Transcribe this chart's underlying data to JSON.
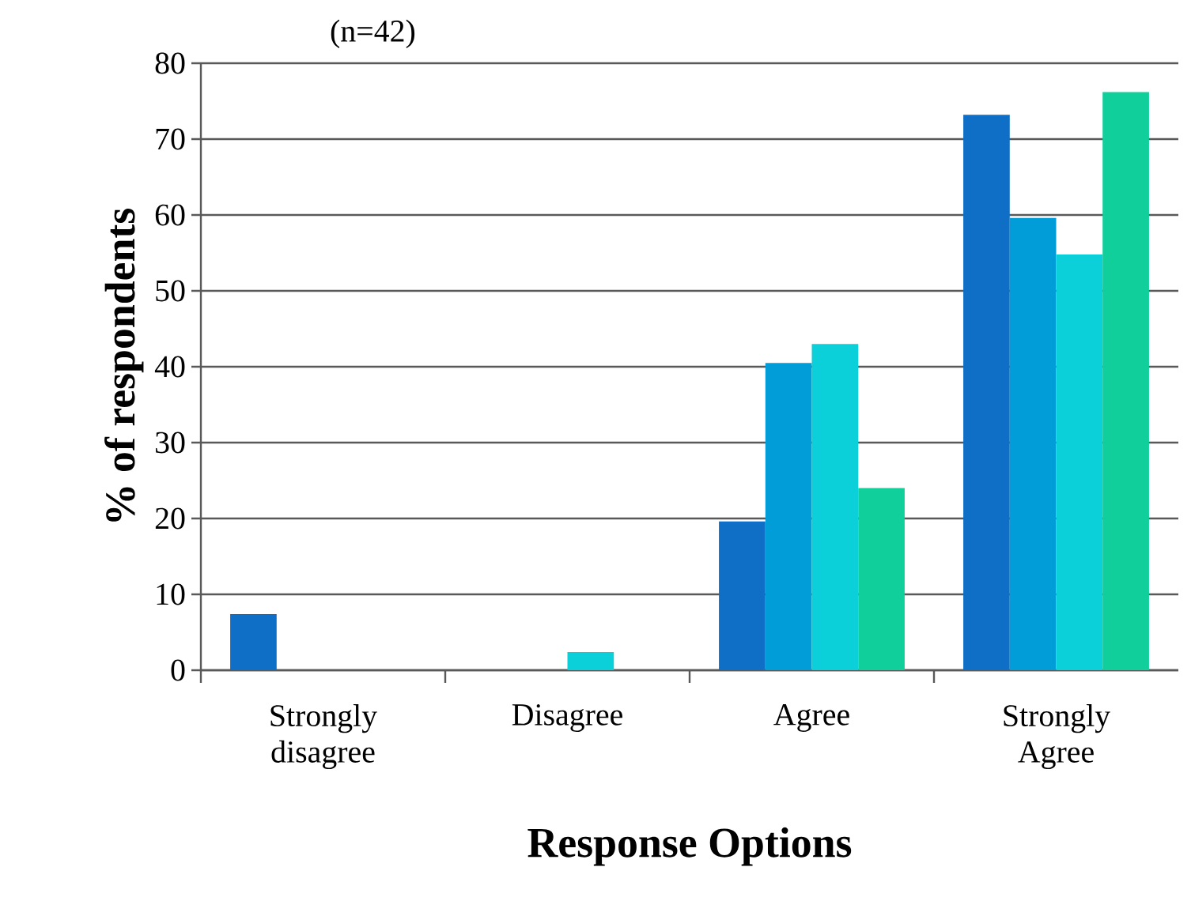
{
  "chart_data": {
    "type": "bar",
    "xlabel": "Response Options",
    "ylabel": "% of respondents",
    "annotations": [
      "(n=42)"
    ],
    "categories": [
      "Strongly disagree",
      "Disagree",
      "Agree",
      "Strongly Agree"
    ],
    "series": [
      {
        "color": "#0f6fc6",
        "values": [
          7.4,
          0,
          19.6,
          73.2
        ]
      },
      {
        "color": "#009dd9",
        "values": [
          0,
          0,
          40.5,
          59.6
        ]
      },
      {
        "color": "#0bd0d9",
        "values": [
          0,
          2.4,
          43,
          54.8
        ]
      },
      {
        "color": "#10cf9b",
        "values": [
          0,
          0,
          24,
          76.2
        ]
      }
    ],
    "ylim": [
      0,
      80
    ],
    "yticks": [
      0,
      10,
      20,
      30,
      40,
      50,
      60,
      70,
      80
    ],
    "grid": "y"
  }
}
